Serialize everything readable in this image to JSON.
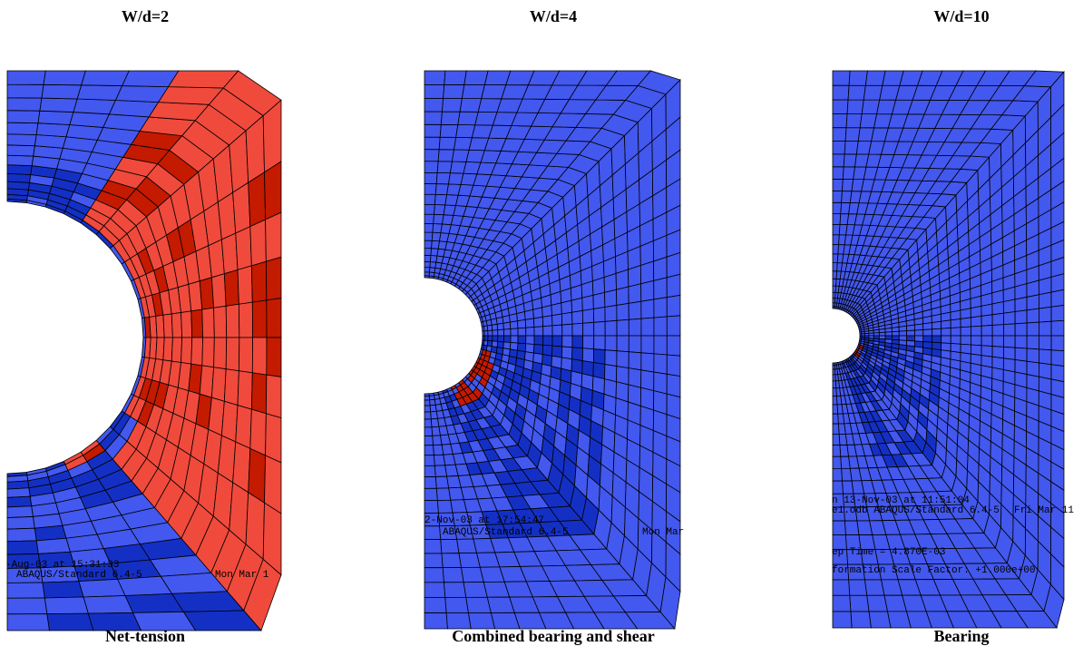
{
  "panels": [
    {
      "title": "W/d=2",
      "caption": "Net-tension",
      "overlay": [
        "-Aug-03 at 15:31:33",
        "ABAQUS/Standard 6.4-5",
        "Mon Mar 1"
      ]
    },
    {
      "title": "W/d=4",
      "caption": "Combined bearing and shear",
      "overlay": [
        "2-Nov-03 at 17:54:47",
        "ABAQUS/Standard 6.4-5",
        "Mon Mar"
      ]
    },
    {
      "title": "W/d=10",
      "caption": "Bearing",
      "overlay": [
        "n 13-Nov-03 at 11:51:04",
        "e1.odb    ABAQUS/Standard 6.4-5",
        "Fri Mar 11",
        "ep Time =   4.870E-03",
        "formation Scale Factor: +1.000e+00"
      ]
    }
  ]
}
